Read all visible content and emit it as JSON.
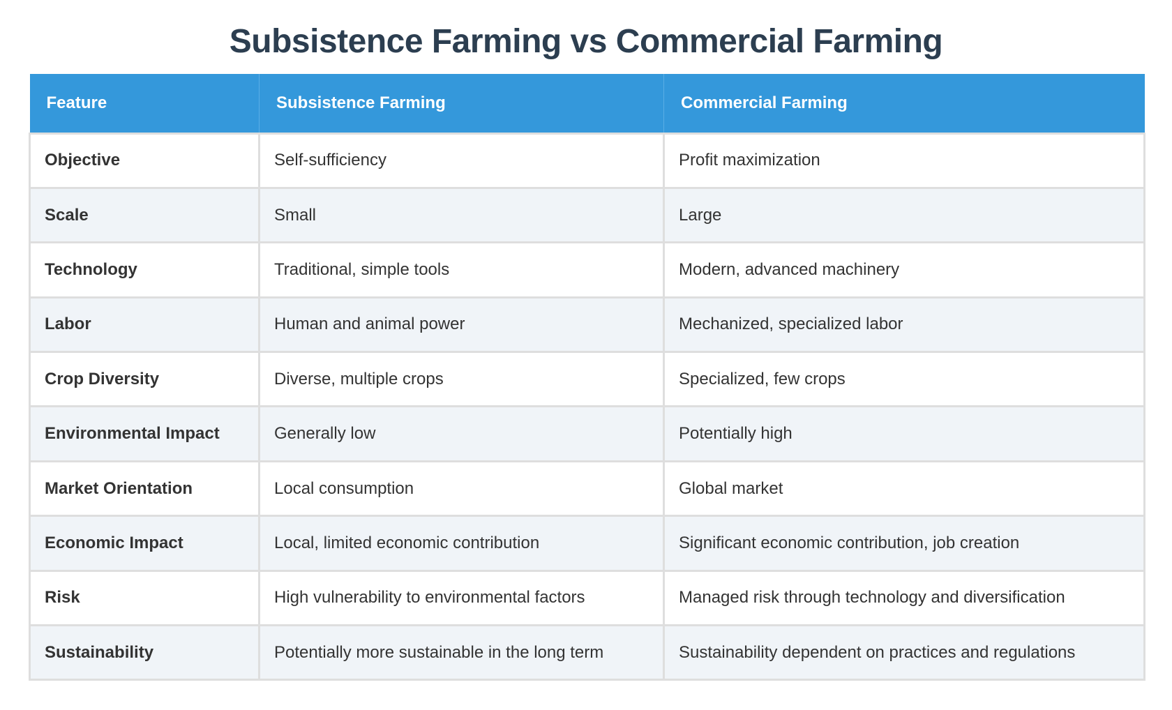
{
  "title": "Subsistence Farming vs Commercial Farming",
  "colors": {
    "title": "#2c3e50",
    "header_bg": "#3498db",
    "header_text": "#ffffff",
    "row_alt_bg": "#f0f4f8",
    "row_bg": "#ffffff",
    "border": "#dedede",
    "body_text": "#333333"
  },
  "table": {
    "headers": [
      "Feature",
      "Subsistence Farming",
      "Commercial Farming"
    ],
    "rows": [
      {
        "feature": "Objective",
        "subsistence": "Self-sufficiency",
        "commercial": "Profit maximization"
      },
      {
        "feature": "Scale",
        "subsistence": "Small",
        "commercial": "Large"
      },
      {
        "feature": "Technology",
        "subsistence": "Traditional, simple tools",
        "commercial": "Modern, advanced machinery"
      },
      {
        "feature": "Labor",
        "subsistence": "Human and animal power",
        "commercial": "Mechanized, specialized labor"
      },
      {
        "feature": "Crop Diversity",
        "subsistence": "Diverse, multiple crops",
        "commercial": "Specialized, few crops"
      },
      {
        "feature": "Environmental Impact",
        "subsistence": "Generally low",
        "commercial": "Potentially high"
      },
      {
        "feature": "Market Orientation",
        "subsistence": "Local consumption",
        "commercial": "Global market"
      },
      {
        "feature": "Economic Impact",
        "subsistence": "Local, limited economic contribution",
        "commercial": "Significant economic contribution, job creation"
      },
      {
        "feature": "Risk",
        "subsistence": "High vulnerability to environmental factors",
        "commercial": "Managed risk through technology and diversification"
      },
      {
        "feature": "Sustainability",
        "subsistence": "Potentially more sustainable in the long term",
        "commercial": "Sustainability dependent on practices and regulations"
      }
    ]
  }
}
